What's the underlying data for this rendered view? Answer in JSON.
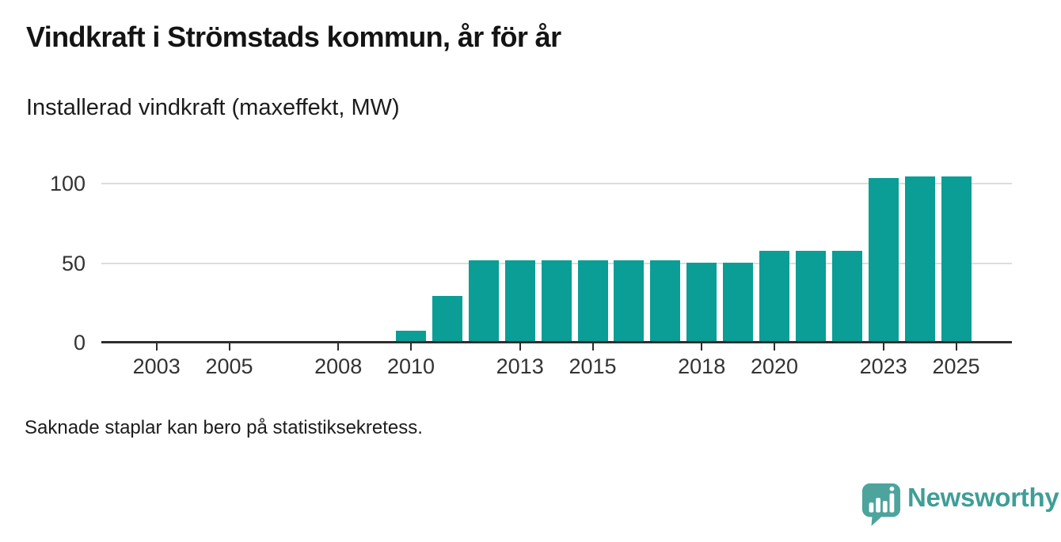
{
  "header": {
    "title": "Vindkraft i Strömstads kommun, år för år",
    "subtitle": "Installerad vindkraft (maxeffekt, MW)"
  },
  "chart_data": {
    "type": "bar",
    "title": "Vindkraft i Strömstads kommun, år för år",
    "ylabel": "Installerad vindkraft (maxeffekt, MW)",
    "unit": "MW",
    "x": [
      2010,
      2011,
      2012,
      2013,
      2014,
      2015,
      2016,
      2017,
      2018,
      2019,
      2020,
      2021,
      2022,
      2023,
      2024,
      2025
    ],
    "values": [
      7,
      29,
      51,
      51,
      51,
      51,
      51,
      51,
      50,
      50,
      57,
      57,
      57,
      103,
      104,
      104
    ],
    "xticks": [
      "2003",
      "2005",
      "2008",
      "2010",
      "2013",
      "2015",
      "2018",
      "2020",
      "2023",
      "2025"
    ],
    "yticks": [
      0,
      50,
      100
    ],
    "xlim": [
      2001.5,
      2026.5
    ],
    "ylim": [
      0,
      110
    ],
    "grid": "horizontal",
    "legend_position": "none",
    "bar_color": "#0a9e96",
    "note": "Saknade staplar kan bero på statistiksekretess."
  },
  "footer": {
    "note": "Saknade staplar kan bero på statistiksekretess.",
    "brand": "Newsworthy"
  },
  "colors": {
    "bar": "#0a9e96",
    "axis": "#2e2e2e",
    "gridline": "#dcdcdc",
    "logo_icon": "#4ca49d",
    "logo_text": "#3f9e97"
  }
}
